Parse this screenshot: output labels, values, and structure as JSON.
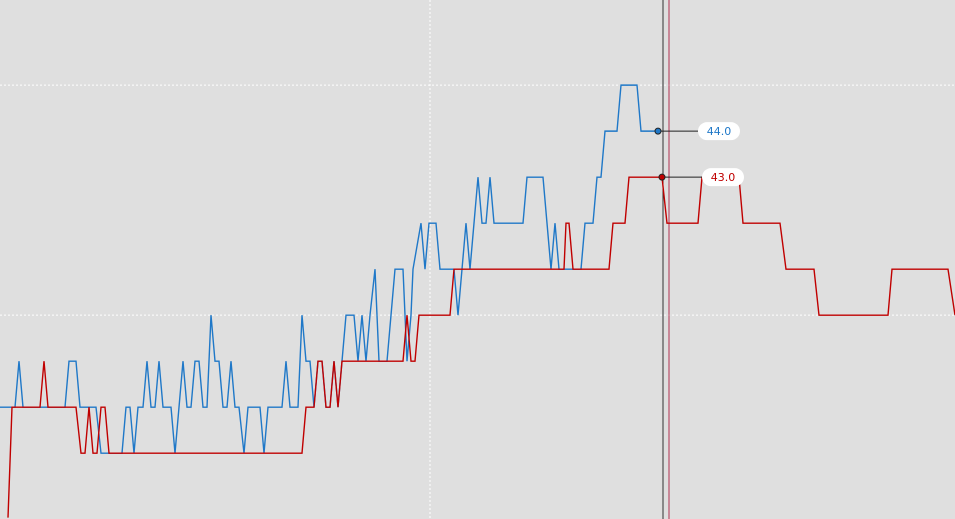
{
  "chart_data": {
    "type": "line",
    "xlim": [
      0,
      955
    ],
    "ylim": [
      35.57,
      46.85
    ],
    "xticks": [
      430
    ],
    "yticks": [
      40,
      45
    ],
    "grid": true,
    "series": [
      {
        "color": "#1f78c8",
        "x": [
          0,
          15,
          19,
          23,
          65,
          69,
          76,
          80,
          96,
          101,
          122,
          126,
          130,
          134,
          138,
          143,
          147,
          151,
          155,
          159,
          163,
          171,
          175,
          179,
          183,
          187,
          191,
          195,
          199,
          203,
          207,
          211,
          215,
          219,
          223,
          227,
          231,
          235,
          239,
          244,
          248,
          260,
          264,
          268,
          282,
          286,
          290,
          298,
          302,
          306,
          310,
          314,
          318,
          322,
          326,
          330,
          334,
          338,
          342,
          346,
          354,
          358,
          362,
          366,
          370,
          375,
          379,
          387,
          391,
          395,
          403,
          407,
          411,
          413,
          421,
          425,
          429,
          436,
          440,
          454,
          458,
          462,
          466,
          470,
          474,
          478,
          482,
          486,
          490,
          494,
          523,
          527,
          543,
          547,
          551,
          555,
          559,
          581,
          585,
          593,
          597,
          601,
          605,
          617,
          621,
          637,
          641,
          658
        ],
        "values": [
          38,
          38,
          39,
          38,
          38,
          39,
          39,
          38,
          38,
          37,
          37,
          38,
          38,
          37,
          38,
          38,
          39,
          38,
          38,
          39,
          38,
          38,
          37,
          38,
          39,
          38,
          38,
          39,
          39,
          38,
          38,
          40,
          39,
          39,
          38,
          38,
          39,
          38,
          38,
          37,
          38,
          38,
          37,
          38,
          38,
          39,
          38,
          38,
          40,
          39,
          39,
          38,
          39,
          39,
          38,
          38,
          39,
          38,
          39,
          40,
          40,
          39,
          40,
          39,
          40,
          41,
          39,
          39,
          40,
          41,
          41,
          39,
          40,
          41,
          42,
          41,
          42,
          42,
          41,
          41,
          40,
          41,
          42,
          41,
          42,
          43,
          42,
          42,
          43,
          42,
          42,
          43,
          43,
          42,
          41,
          42,
          41,
          41,
          42,
          42,
          43,
          43,
          44,
          44,
          45,
          45,
          44,
          44
        ]
      },
      {
        "color": "#c00000",
        "x": [
          8,
          12,
          40,
          44,
          48,
          76,
          81,
          85,
          89,
          93,
          97,
          101,
          105,
          109,
          302,
          306,
          314,
          318,
          322,
          326,
          330,
          334,
          338,
          342,
          403,
          407,
          411,
          415,
          419,
          450,
          454,
          564,
          566,
          569,
          573,
          609,
          613,
          625,
          629,
          662,
          667,
          698,
          702,
          739,
          743,
          780,
          786,
          814,
          819,
          888,
          892,
          948,
          955
        ],
        "values": [
          35.6,
          38,
          38,
          39,
          38,
          38,
          37,
          37,
          38,
          37,
          37,
          38,
          38,
          37,
          37,
          38,
          38,
          39,
          39,
          38,
          38,
          39,
          38,
          39,
          39,
          40,
          39,
          39,
          40,
          40,
          41,
          41,
          42,
          42,
          41,
          41,
          42,
          42,
          43,
          43,
          42,
          42,
          43,
          43,
          42,
          42,
          41,
          41,
          40,
          40,
          41,
          41,
          40
        ]
      }
    ],
    "annotations": [
      {
        "x": 658,
        "value": 44,
        "label": "44.0",
        "series": 0
      },
      {
        "x": 662,
        "value": 43,
        "label": "43.0",
        "series": 1
      }
    ]
  }
}
